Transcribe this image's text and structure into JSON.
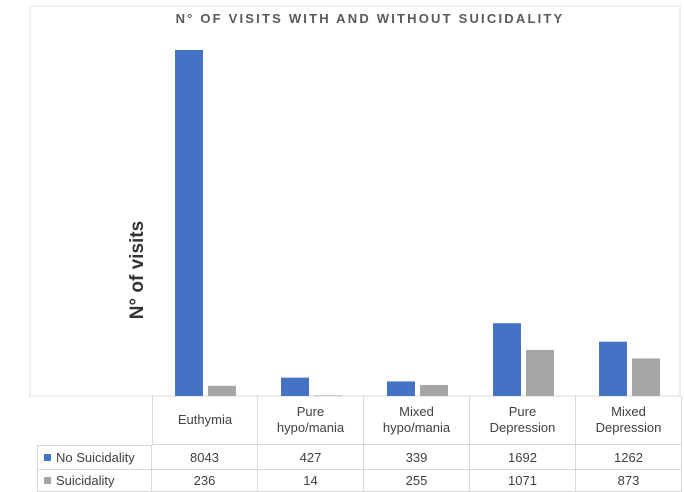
{
  "chart_data": {
    "type": "bar",
    "title": "N° OF VISITS WITH AND WITHOUT SUICIDALITY",
    "y_label": "N° of visits",
    "categories": [
      "Euthymia",
      "Pure hypo/mania",
      "Mixed hypo/mania",
      "Pure Depression",
      "Mixed Depression"
    ],
    "series": [
      {
        "name": "No Suicidality",
        "color": "#4472c4",
        "values": [
          8043,
          427,
          339,
          1692,
          1262
        ]
      },
      {
        "name": "Suicidality",
        "color": "#a5a5a5",
        "values": [
          236,
          14,
          255,
          1071,
          873
        ]
      }
    ]
  }
}
